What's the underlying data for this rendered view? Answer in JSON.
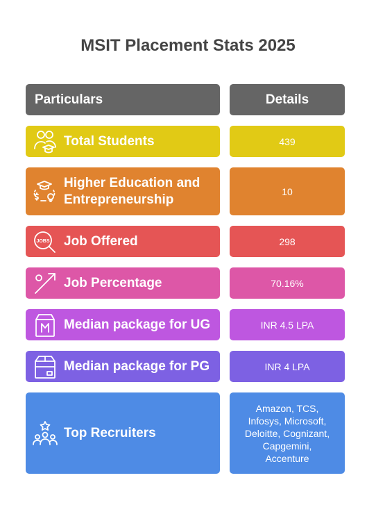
{
  "title": "MSIT Placement Stats 2025",
  "header": {
    "left": "Particulars",
    "right": "Details"
  },
  "rows": [
    {
      "label": "Total Students",
      "value": "439",
      "color": "#E1CA15",
      "icon": "students-icon"
    },
    {
      "label": "Higher Education and Entrepreneurship",
      "value": "10",
      "color": "#E0832F",
      "icon": "education-entrepreneurship-icon"
    },
    {
      "label": "Job Offered",
      "value": "298",
      "color": "#E55555",
      "icon": "jobs-search-icon"
    },
    {
      "label": "Job Percentage",
      "value": "70.16%",
      "color": "#DD57A7",
      "icon": "percentage-icon"
    },
    {
      "label": "Median package for UG",
      "value": "INR 4.5 LPA",
      "color": "#BE57E0",
      "icon": "package-m-icon"
    },
    {
      "label": "Median package for PG",
      "value": "INR 4 LPA",
      "color": "#7D61E3",
      "icon": "package-box-icon"
    },
    {
      "label": "Top Recruiters",
      "value": "Amazon, TCS, Infosys, Microsoft, Deloitte, Cognizant, Capgemini, Accenture",
      "color": "#4E8BE5",
      "icon": "recruiters-star-icon"
    }
  ],
  "colors": {
    "header": "#656565",
    "title": "#444444"
  }
}
